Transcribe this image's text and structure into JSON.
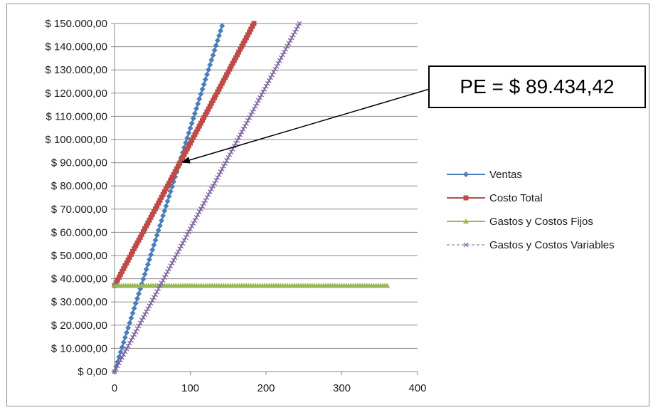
{
  "chart_data": {
    "type": "line",
    "title": "",
    "xlabel": "",
    "ylabel": "",
    "xlim": [
      0,
      400
    ],
    "ylim": [
      0,
      150000
    ],
    "x_ticks": [
      "0",
      "100",
      "200",
      "300",
      "400"
    ],
    "y_ticks": [
      "$ 0,00",
      "$ 10.000,00",
      "$ 20.000,00",
      "$ 30.000,00",
      "$ 40.000,00",
      "$ 50.000,00",
      "$ 60.000,00",
      "$ 70.000,00",
      "$ 80.000,00",
      "$ 90.000,00",
      "$ 100.000,00",
      "$ 110.000,00",
      "$ 120.000,00",
      "$ 130.000,00",
      "$ 140.000,00",
      "$ 150.000,00"
    ],
    "grid": "horizontal",
    "legend_position": "right",
    "series": [
      {
        "name": "Ventas",
        "color": "#4a7ebb",
        "marker": "diamond",
        "x": [
          0,
          143
        ],
        "y": [
          0,
          150000
        ]
      },
      {
        "name": "Costo Total",
        "color": "#be4b48",
        "marker": "square",
        "x": [
          0,
          184
        ],
        "y": [
          37000,
          150000
        ]
      },
      {
        "name": "Gastos y Costos Fijos",
        "color": "#98b954",
        "marker": "triangle",
        "x": [
          0,
          360
        ],
        "y": [
          37000,
          37000
        ]
      },
      {
        "name": "Gastos y Costos Variables",
        "color": "#7d60a0",
        "marker": "x",
        "x": [
          0,
          244
        ],
        "y": [
          0,
          150000
        ]
      }
    ],
    "annotation": {
      "text": "PE = $ 89.434,42",
      "x": 86,
      "y": 89434.42
    }
  }
}
